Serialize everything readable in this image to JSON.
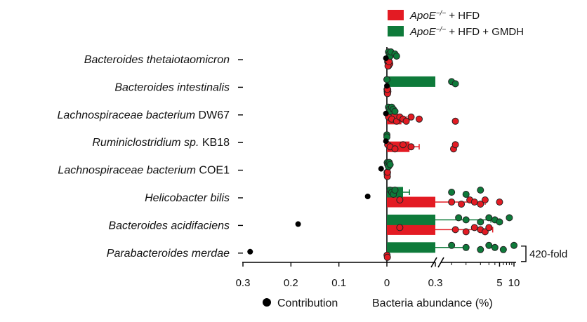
{
  "chart_data": {
    "type": "bar",
    "categories": [
      {
        "name": "Bacteroides thetaiotaomicron",
        "suffix": ""
      },
      {
        "name": "Bacteroides intestinalis",
        "suffix": ""
      },
      {
        "name": "Lachnospiraceae bacterium",
        "suffix": " DW67"
      },
      {
        "name": "Ruminiclostridium sp.",
        "suffix": " KB18"
      },
      {
        "name": "Lachnospiraceae bacterium",
        "suffix": " COE1"
      },
      {
        "name": "Helicobacter bilis",
        "suffix": ""
      },
      {
        "name": "Bacteroides acidifaciens",
        "suffix": ""
      },
      {
        "name": "Parabacteroides merdae",
        "suffix": ""
      }
    ],
    "contribution": {
      "name": "Contribution",
      "values": [
        0.002,
        0.0,
        0.002,
        0.002,
        0.012,
        0.04,
        0.185,
        0.285
      ]
    },
    "series": [
      {
        "name_italic": "ApoE",
        "name_super": "−/−",
        "name_rest": " + HFD",
        "color": "#e31b23",
        "values": [
          0.012,
          0.004,
          0.09,
          0.14,
          0.005,
          2.0,
          2.8,
          0.002
        ],
        "errors": [
          0.004,
          0.002,
          0.03,
          0.06,
          0.002,
          0.5,
          0.8,
          0.001
        ],
        "points": [
          [
            0.005,
            0.008,
            0.01,
            0.015,
            0.018,
            0.007,
            0.013
          ],
          [
            0.001,
            0.002,
            0.003,
            0.005,
            0.006,
            0.004,
            0.003
          ],
          [
            0.01,
            0.03,
            0.06,
            0.08,
            0.1,
            0.12,
            0.15,
            0.2,
            0.6
          ],
          [
            0.005,
            0.02,
            0.05,
            0.1,
            0.15,
            0.55,
            0.6
          ],
          [
            0.001,
            0.002,
            0.003,
            0.004
          ],
          [
            0.08,
            0.5,
            0.8,
            1.2,
            1.5,
            2.0,
            2.5,
            5.0
          ],
          [
            0.08,
            0.6,
            1.0,
            1.5,
            2.0,
            2.5,
            3.0
          ],
          [
            0.001,
            0.003
          ]
        ]
      },
      {
        "name_italic": "ApoE",
        "name_super": "−/−",
        "name_rest": " + HFD + GMDH",
        "color": "#0e7a3a",
        "values": [
          0.03,
          0.3,
          0.03,
          0.0,
          0.01,
          0.1,
          2.5,
          0.6
        ],
        "errors": [
          0.015,
          0.0,
          0.015,
          0.0,
          0.004,
          0.04,
          0.8,
          0.5
        ],
        "points": [
          [
            0.01,
            0.015,
            0.02,
            0.025,
            0.05,
            0.06
          ],
          [
            0.0,
            0.5,
            0.6
          ],
          [
            0.01,
            0.015,
            0.02,
            0.03,
            0.04,
            0.05
          ],
          [
            0.0,
            0.0
          ],
          [
            0.002,
            0.005,
            0.01,
            0.015,
            0.02
          ],
          [
            0.02,
            0.03,
            0.04,
            0.05,
            0.5,
            1.0,
            2.0
          ],
          [
            0.7,
            1.0,
            2.0,
            3.0,
            4.0,
            5.0,
            8.0
          ],
          [
            0.5,
            1.0,
            2.0,
            3.0,
            4.0,
            6.0,
            10.0
          ]
        ]
      }
    ],
    "x_ticks_left": [
      "0.3",
      "0.2",
      "0.1",
      "0"
    ],
    "x_ticks_right": [
      "0.3",
      "5",
      "10"
    ],
    "xlabel_left": "Contribution",
    "xlabel_right": "Bacteria abundance (%)",
    "annotation": "420-fold"
  }
}
